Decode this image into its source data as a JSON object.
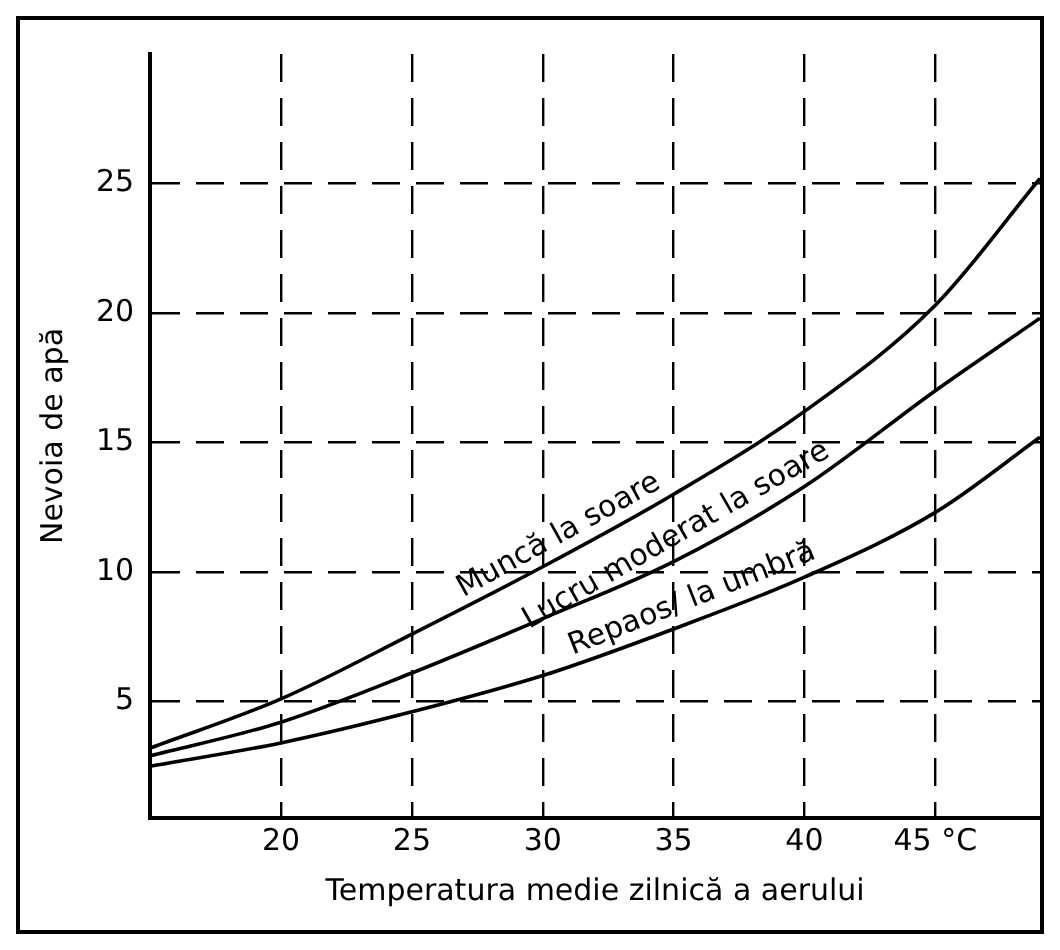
{
  "chart_data": {
    "type": "line",
    "xlabel": "Temperatura medie zilnică a aerului",
    "ylabel": "Nevoia de apă",
    "xlim": [
      15,
      49
    ],
    "xticks": [
      20,
      25,
      30,
      35,
      40,
      {
        "value": 45,
        "label": "45 °C"
      }
    ],
    "ylim": [
      0.5,
      30
    ],
    "yticks": [
      5,
      10,
      15,
      20,
      25
    ],
    "grid": true,
    "legend": false,
    "marker": "none",
    "line_style": "solid",
    "series": [
      {
        "color": "#000000",
        "x": [
          15,
          20,
          25,
          30,
          35,
          40,
          45,
          49
        ],
        "values": [
          3.2,
          5.1,
          7.6,
          10.2,
          13.0,
          16.2,
          20.3,
          25.2
        ]
      },
      {
        "color": "#000000",
        "x": [
          15,
          20,
          25,
          30,
          35,
          40,
          45,
          49
        ],
        "values": [
          2.9,
          4.2,
          6.1,
          8.2,
          10.4,
          13.3,
          17.0,
          19.8
        ]
      },
      {
        "color": "#000000",
        "x": [
          15,
          20,
          25,
          30,
          35,
          40,
          45,
          49
        ],
        "values": [
          2.5,
          3.4,
          4.6,
          6.0,
          7.8,
          9.8,
          12.3,
          15.2
        ]
      }
    ],
    "annotations": [
      {
        "text": "Muncă la soare",
        "x": 31,
        "y": 10.7
      },
      {
        "text": "Lucru moderat la soare",
        "x": 35.5,
        "y": 10.7
      },
      {
        "text": "Repaos/ la umbră",
        "x": 36,
        "y": 8.2
      }
    ]
  }
}
